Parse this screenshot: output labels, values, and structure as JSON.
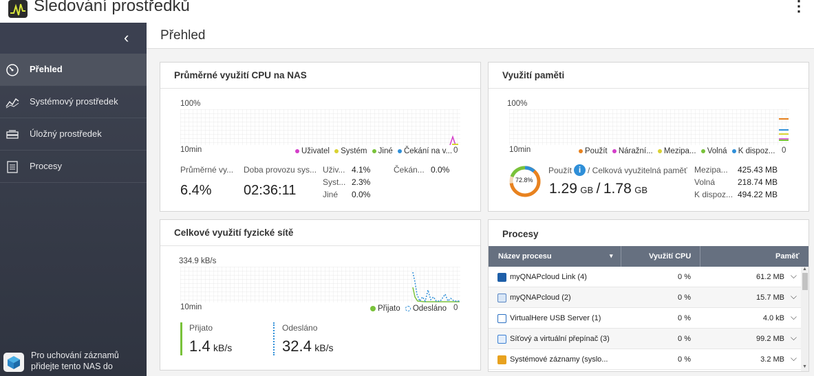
{
  "app": {
    "title": "Sledování prostředků",
    "more_icon": "more-vertical-icon"
  },
  "sidebar": {
    "items": [
      {
        "label": "Přehled",
        "icon": "gauge-icon",
        "active": true
      },
      {
        "label": "Systémový prostředek",
        "icon": "line-chart-icon",
        "active": false
      },
      {
        "label": "Úložný prostředek",
        "icon": "storage-drive-icon",
        "active": false
      },
      {
        "label": "Procesy",
        "icon": "list-document-icon",
        "active": false
      }
    ],
    "nas_note": "Pro uchování záznamů přidejte tento NAS do"
  },
  "page": {
    "title": "Přehled"
  },
  "cpu_card": {
    "title": "Průměrné využití CPU na NAS",
    "chart_top": "100%",
    "chart_bottom": "10min",
    "chart_zero": "0",
    "legend": [
      {
        "label": "Uživatel",
        "color": "#d43ec9"
      },
      {
        "label": "Systém",
        "color": "#d9d232"
      },
      {
        "label": "Jiné",
        "color": "#79c23a"
      },
      {
        "label": "Čekání na v...",
        "color": "#2f8fd8"
      }
    ],
    "avg_label": "Průměrné vy...",
    "avg_value": "6.4%",
    "uptime_label": "Doba provozu sys...",
    "uptime_value": "02:36:11",
    "breakdown": [
      {
        "label": "Uživ...",
        "value": "4.1%"
      },
      {
        "label": "Syst...",
        "value": "2.3%"
      },
      {
        "label": "Jiné",
        "value": "0.0%"
      }
    ],
    "wait_label": "Čekán...",
    "wait_value": "0.0%"
  },
  "mem_card": {
    "title": "Využití paměti",
    "chart_top": "100%",
    "chart_bottom": "10min",
    "chart_zero": "0",
    "legend": [
      {
        "label": "Použít",
        "color": "#e8821f"
      },
      {
        "label": "Náražní...",
        "color": "#d43ec9"
      },
      {
        "label": "Mezipa...",
        "color": "#d9d232"
      },
      {
        "label": "Volná",
        "color": "#79c23a"
      },
      {
        "label": "K dispoz...",
        "color": "#2f8fd8"
      }
    ],
    "donut_percent": "72.8%",
    "donut_fraction": 0.728,
    "used_label": "Použít",
    "info_icon": "info-icon",
    "total_label": "/ Celková využitelná paměť",
    "used_value": "1.29",
    "used_unit": "GB",
    "total_sep": "/",
    "total_value": "1.78",
    "total_unit": "GB",
    "details": [
      {
        "label": "Mezipa...",
        "value": "425.43 MB"
      },
      {
        "label": "Volná",
        "value": "218.74 MB"
      },
      {
        "label": "K dispoz...",
        "value": "494.22 MB"
      }
    ]
  },
  "net_card": {
    "title": "Celkové využití fyzické sítě",
    "chart_top": "334.9 kB/s",
    "chart_bottom": "10min",
    "chart_zero": "0",
    "legend": [
      {
        "label": "Přijato",
        "color": "#79c23a"
      },
      {
        "label": "Odesláno",
        "color": "#2f8fd8"
      }
    ],
    "received_label": "Přijato",
    "received_value": "1.4",
    "received_unit": "kB/s",
    "sent_label": "Odesláno",
    "sent_value": "32.4",
    "sent_unit": "kB/s"
  },
  "proc_card": {
    "title": "Procesy",
    "columns": [
      "Název procesu",
      "Využití CPU",
      "Paměť"
    ],
    "sort_icon": "sort-down-icon",
    "rows": [
      {
        "name": "myQNAPcloud Link (4)",
        "cpu": "0 %",
        "mem": "61.2 MB",
        "icon": "myqnapcloud-link-icon",
        "icon_color": "#1e5fa8"
      },
      {
        "name": "myQNAPcloud (2)",
        "cpu": "0 %",
        "mem": "15.7 MB",
        "icon": "cloud-icon",
        "icon_color": "#5a86c4"
      },
      {
        "name": "VirtualHere USB Server (1)",
        "cpu": "0 %",
        "mem": "4.0 kB",
        "icon": "usb-server-icon",
        "icon_color": "#2a6fc2"
      },
      {
        "name": "Síťový a virtuální přepínač (3)",
        "cpu": "0 %",
        "mem": "99.2 MB",
        "icon": "network-switch-icon",
        "icon_color": "#3b7fd2"
      },
      {
        "name": "Systémové záznamy (syslo...",
        "cpu": "0 %",
        "mem": "3.2 MB",
        "icon": "system-log-icon",
        "icon_color": "#e8a21f"
      }
    ]
  }
}
